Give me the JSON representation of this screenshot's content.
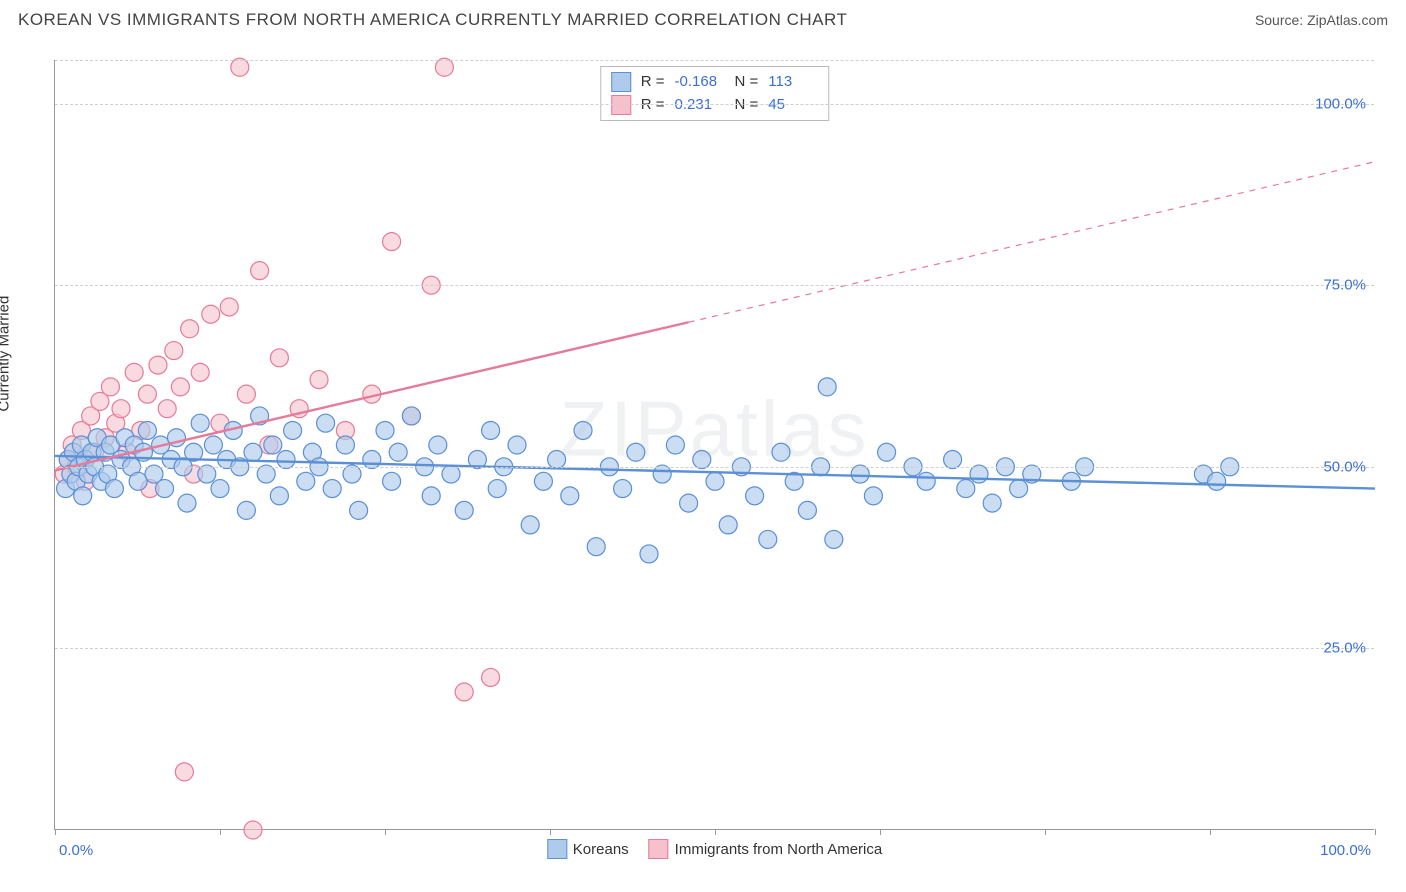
{
  "title": "KOREAN VS IMMIGRANTS FROM NORTH AMERICA CURRENTLY MARRIED CORRELATION CHART",
  "source": "Source: ZipAtlas.com",
  "watermark": "ZIPatlas",
  "chart": {
    "type": "scatter",
    "xlim": [
      0,
      100
    ],
    "ylim": [
      0,
      106
    ],
    "y_axis_title": "Currently Married",
    "x_ticks": [
      0,
      12.5,
      25,
      37.5,
      50,
      62.5,
      75,
      87.5,
      100
    ],
    "x_tick_labels": {
      "0": "0.0%",
      "100": "100.0%"
    },
    "y_gridlines": [
      25,
      50,
      75,
      100,
      106
    ],
    "y_tick_labels": {
      "25": "25.0%",
      "50": "50.0%",
      "75": "75.0%",
      "100": "100.0%"
    },
    "grid_color": "#cfcfcf",
    "axis_color": "#999999",
    "background_color": "#ffffff",
    "tick_label_color": "#3b6fd6",
    "marker_radius": 9,
    "marker_stroke_width": 1.2,
    "trend_line_width": 2.4
  },
  "series": {
    "koreans": {
      "label": "Koreans",
      "fill": "#aecbeb",
      "stroke": "#5b8fd6",
      "fill_opacity": 0.65,
      "R": "-0.168",
      "N": "113",
      "trend": {
        "x1": 0,
        "y1": 51.5,
        "x2": 100,
        "y2": 47.0,
        "dashed_from_x": null
      },
      "points": [
        [
          0.8,
          47
        ],
        [
          1.0,
          51
        ],
        [
          1.2,
          49
        ],
        [
          1.4,
          52
        ],
        [
          1.6,
          48
        ],
        [
          1.8,
          50
        ],
        [
          2.0,
          53
        ],
        [
          2.1,
          46
        ],
        [
          2.3,
          51
        ],
        [
          2.5,
          49
        ],
        [
          2.8,
          52
        ],
        [
          3.0,
          50
        ],
        [
          3.2,
          54
        ],
        [
          3.5,
          48
        ],
        [
          3.8,
          52
        ],
        [
          4.0,
          49
        ],
        [
          4.2,
          53
        ],
        [
          4.5,
          47
        ],
        [
          5.0,
          51
        ],
        [
          5.3,
          54
        ],
        [
          5.8,
          50
        ],
        [
          6.0,
          53
        ],
        [
          6.3,
          48
        ],
        [
          6.7,
          52
        ],
        [
          7.0,
          55
        ],
        [
          7.5,
          49
        ],
        [
          8.0,
          53
        ],
        [
          8.3,
          47
        ],
        [
          8.8,
          51
        ],
        [
          9.2,
          54
        ],
        [
          9.7,
          50
        ],
        [
          10.0,
          45
        ],
        [
          10.5,
          52
        ],
        [
          11.0,
          56
        ],
        [
          11.5,
          49
        ],
        [
          12.0,
          53
        ],
        [
          12.5,
          47
        ],
        [
          13.0,
          51
        ],
        [
          13.5,
          55
        ],
        [
          14.0,
          50
        ],
        [
          14.5,
          44
        ],
        [
          15.0,
          52
        ],
        [
          15.5,
          57
        ],
        [
          16.0,
          49
        ],
        [
          16.5,
          53
        ],
        [
          17.0,
          46
        ],
        [
          17.5,
          51
        ],
        [
          18.0,
          55
        ],
        [
          19.0,
          48
        ],
        [
          19.5,
          52
        ],
        [
          20.0,
          50
        ],
        [
          20.5,
          56
        ],
        [
          21.0,
          47
        ],
        [
          22.0,
          53
        ],
        [
          22.5,
          49
        ],
        [
          23.0,
          44
        ],
        [
          24.0,
          51
        ],
        [
          25.0,
          55
        ],
        [
          25.5,
          48
        ],
        [
          26.0,
          52
        ],
        [
          27.0,
          57
        ],
        [
          28.0,
          50
        ],
        [
          28.5,
          46
        ],
        [
          29.0,
          53
        ],
        [
          30.0,
          49
        ],
        [
          31.0,
          44
        ],
        [
          32.0,
          51
        ],
        [
          33.0,
          55
        ],
        [
          33.5,
          47
        ],
        [
          34.0,
          50
        ],
        [
          35.0,
          53
        ],
        [
          36.0,
          42
        ],
        [
          37.0,
          48
        ],
        [
          38.0,
          51
        ],
        [
          39.0,
          46
        ],
        [
          40.0,
          55
        ],
        [
          41.0,
          39
        ],
        [
          42.0,
          50
        ],
        [
          43.0,
          47
        ],
        [
          44.0,
          52
        ],
        [
          45.0,
          38
        ],
        [
          46.0,
          49
        ],
        [
          47.0,
          53
        ],
        [
          48.0,
          45
        ],
        [
          49.0,
          51
        ],
        [
          50.0,
          48
        ],
        [
          51.0,
          42
        ],
        [
          52.0,
          50
        ],
        [
          53.0,
          46
        ],
        [
          54.0,
          40
        ],
        [
          55.0,
          52
        ],
        [
          56.0,
          48
        ],
        [
          57.0,
          44
        ],
        [
          58.0,
          50
        ],
        [
          58.5,
          61
        ],
        [
          59.0,
          40
        ],
        [
          61.0,
          49
        ],
        [
          62.0,
          46
        ],
        [
          63.0,
          52
        ],
        [
          65.0,
          50
        ],
        [
          66.0,
          48
        ],
        [
          68.0,
          51
        ],
        [
          69.0,
          47
        ],
        [
          70.0,
          49
        ],
        [
          71.0,
          45
        ],
        [
          72.0,
          50
        ],
        [
          73.0,
          47
        ],
        [
          74.0,
          49
        ],
        [
          77.0,
          48
        ],
        [
          78.0,
          50
        ],
        [
          87.0,
          49
        ],
        [
          88.0,
          48
        ],
        [
          89.0,
          50
        ]
      ]
    },
    "immigrants": {
      "label": "Immigrants from North America",
      "fill": "#f6c1cd",
      "stroke": "#e67a99",
      "fill_opacity": 0.6,
      "R": "0.231",
      "N": "45",
      "trend": {
        "x1": 0,
        "y1": 49.5,
        "x2": 100,
        "y2": 92.0,
        "dashed_from_x": 48
      },
      "points": [
        [
          0.7,
          49
        ],
        [
          1.0,
          51
        ],
        [
          1.3,
          53
        ],
        [
          1.6,
          50
        ],
        [
          2.0,
          55
        ],
        [
          2.3,
          48
        ],
        [
          2.7,
          57
        ],
        [
          3.0,
          52
        ],
        [
          3.4,
          59
        ],
        [
          3.8,
          54
        ],
        [
          4.2,
          61
        ],
        [
          4.6,
          56
        ],
        [
          5.0,
          58
        ],
        [
          5.5,
          52
        ],
        [
          6.0,
          63
        ],
        [
          6.5,
          55
        ],
        [
          7.0,
          60
        ],
        [
          7.2,
          47
        ],
        [
          7.8,
          64
        ],
        [
          8.5,
          58
        ],
        [
          9.0,
          66
        ],
        [
          9.5,
          61
        ],
        [
          10.2,
          69
        ],
        [
          10.5,
          49
        ],
        [
          11.0,
          63
        ],
        [
          11.8,
          71
        ],
        [
          12.5,
          56
        ],
        [
          13.2,
          72
        ],
        [
          14.0,
          105
        ],
        [
          14.5,
          60
        ],
        [
          15.5,
          77
        ],
        [
          16.2,
          53
        ],
        [
          17.0,
          65
        ],
        [
          18.5,
          58
        ],
        [
          20.0,
          62
        ],
        [
          22.0,
          55
        ],
        [
          24.0,
          60
        ],
        [
          25.5,
          81
        ],
        [
          27.0,
          57
        ],
        [
          28.5,
          75
        ],
        [
          29.5,
          105
        ],
        [
          31.0,
          19
        ],
        [
          33.0,
          21
        ],
        [
          9.8,
          8
        ],
        [
          15.0,
          0
        ]
      ]
    }
  },
  "stats_box": {
    "rows": [
      {
        "swatch": "koreans",
        "R_label": "R =",
        "R": "-0.168",
        "N_label": "N =",
        "N": "113"
      },
      {
        "swatch": "immigrants",
        "R_label": "R =",
        "R": "0.231",
        "N_label": "N =",
        "N": "45"
      }
    ]
  },
  "legend": [
    {
      "swatch": "koreans",
      "label": "Koreans"
    },
    {
      "swatch": "immigrants",
      "label": "Immigrants from North America"
    }
  ]
}
